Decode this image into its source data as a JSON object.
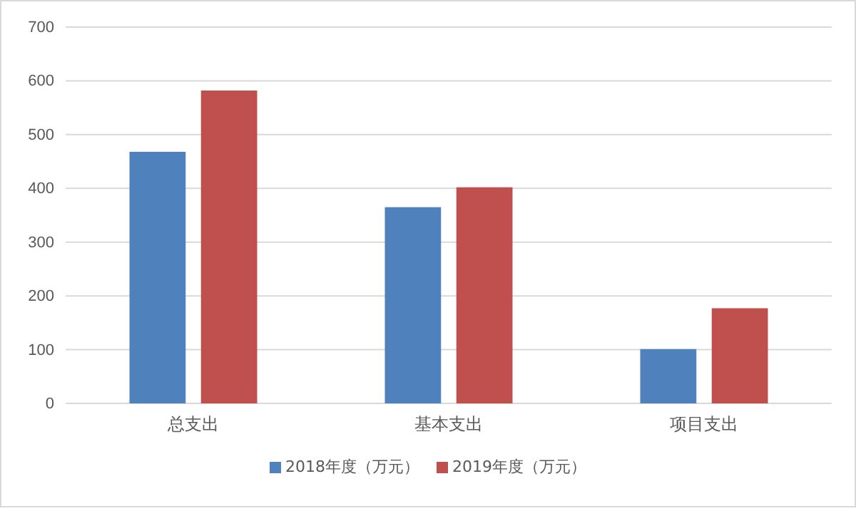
{
  "chart_data": {
    "type": "bar",
    "categories": [
      "总支出",
      "基本支出",
      "项目支出"
    ],
    "series": [
      {
        "name": "2018年度（万元）",
        "color": "#4f81bd",
        "values": [
          468,
          365,
          101
        ]
      },
      {
        "name": "2019年度（万元）",
        "color": "#c0504d",
        "values": [
          582,
          402,
          177
        ]
      }
    ],
    "ylim": [
      0,
      700
    ],
    "yticks": [
      0,
      100,
      200,
      300,
      400,
      500,
      600,
      700
    ],
    "grid": "y",
    "legend": "bottom"
  }
}
